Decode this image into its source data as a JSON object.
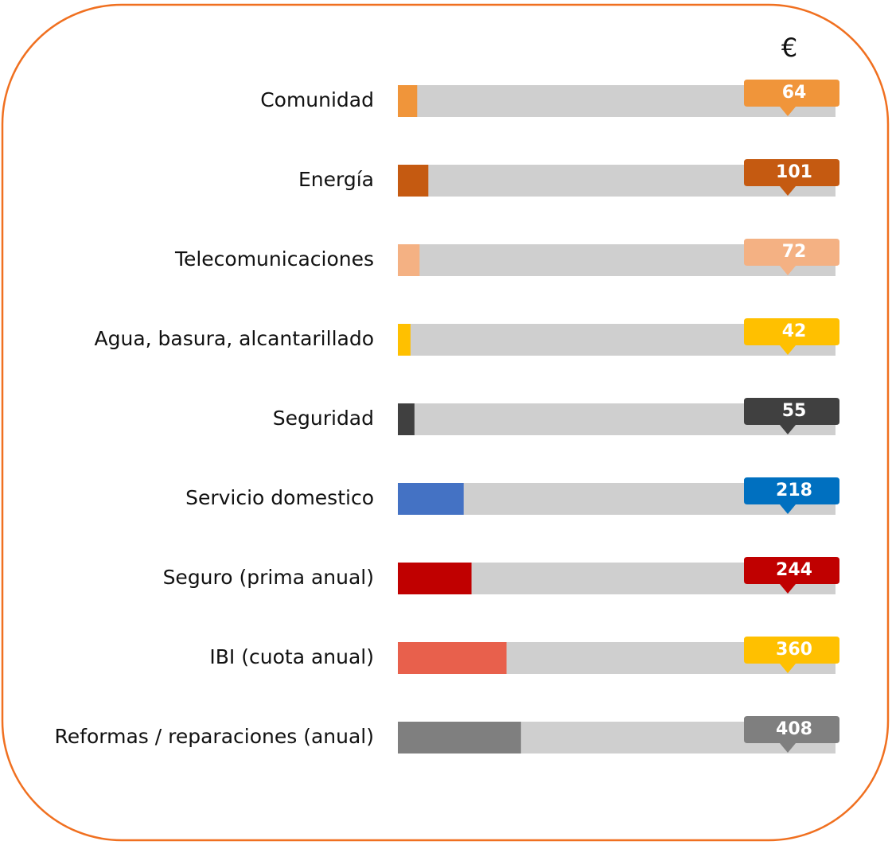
{
  "chart_data": {
    "type": "bar",
    "title": "€",
    "categories": [
      "Comunidad",
      "Energía",
      "Telecomunicaciones",
      "Agua, basura, alcantarillado",
      "Seguridad",
      "Servicio domestico",
      "Seguro (prima anual)",
      "IBI (cuota anual)",
      "Reformas / reparaciones (anual)"
    ],
    "values": [
      64,
      101,
      72,
      42,
      55,
      218,
      244,
      360,
      408
    ],
    "colors": [
      "#f0953a",
      "#c55a11",
      "#f4b183",
      "#ffc000",
      "#404040",
      "#4472c4",
      "#c00000",
      "#e8604c",
      "#7f7f7f"
    ],
    "label_colors": [
      "#f0953a",
      "#c55a11",
      "#f4b183",
      "#ffc000",
      "#404040",
      "#0070c0",
      "#c00000",
      "#ffc000",
      "#7f7f7f"
    ],
    "xlim": [
      0,
      1450
    ]
  }
}
